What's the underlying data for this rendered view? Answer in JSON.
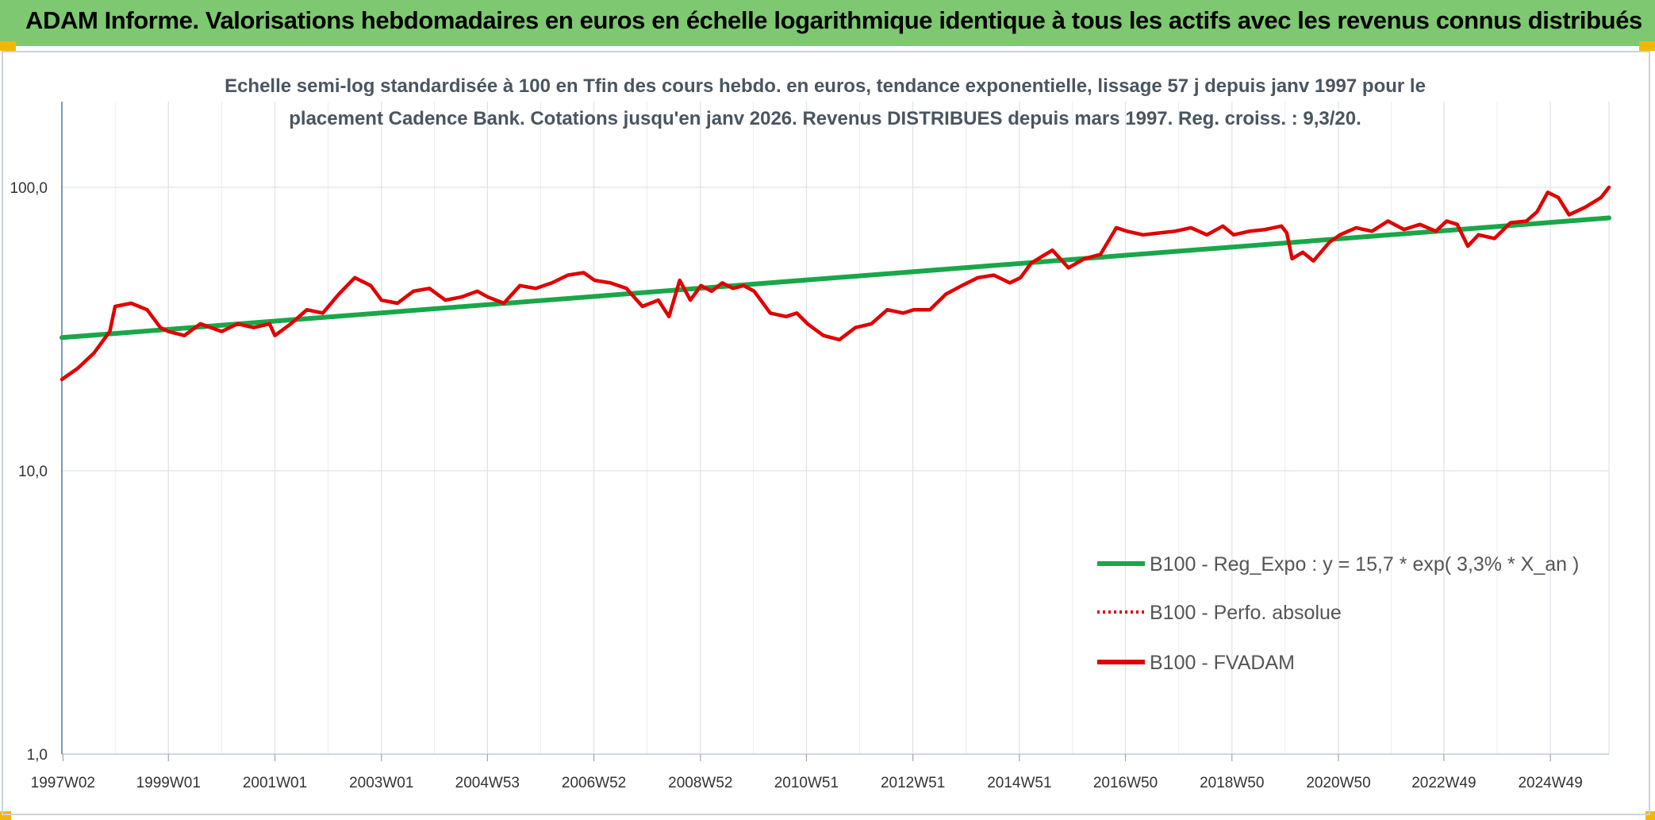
{
  "header": {
    "title": "ADAM Informe. Valorisations hebdomadaires en euros en échelle logarithmique identique à tous les actifs avec les revenus connus distribués"
  },
  "chart_data": {
    "type": "line",
    "title_line1": "Echelle semi-log standardisée à 100 en Tfin des cours hebdo. en euros, tendance exponentielle, lissage 57 j depuis janv 1997 pour le",
    "title_line2": "placement Cadence Bank. Cotations jusqu'en janv 2026. Revenus DISTRIBUES depuis mars 1997. Reg. croiss. : 9,3/20.",
    "y_scale": "log",
    "ylim": [
      1,
      200
    ],
    "y_ticks": [
      {
        "value": 1,
        "label": "1,0"
      },
      {
        "value": 10,
        "label": "10,0"
      },
      {
        "value": 100,
        "label": "100,0"
      }
    ],
    "x_range": [
      1997.0,
      2026.05
    ],
    "x_ticks": [
      {
        "value": 1997.02,
        "label": "1997W02"
      },
      {
        "value": 1999.0,
        "label": "1999W01"
      },
      {
        "value": 2001.0,
        "label": "2001W01"
      },
      {
        "value": 2003.0,
        "label": "2003W01"
      },
      {
        "value": 2004.99,
        "label": "2004W53"
      },
      {
        "value": 2006.99,
        "label": "2006W52"
      },
      {
        "value": 2008.99,
        "label": "2008W52"
      },
      {
        "value": 2010.98,
        "label": "2010W51"
      },
      {
        "value": 2012.98,
        "label": "2012W51"
      },
      {
        "value": 2014.98,
        "label": "2014W51"
      },
      {
        "value": 2016.97,
        "label": "2016W50"
      },
      {
        "value": 2018.97,
        "label": "2018W50"
      },
      {
        "value": 2020.97,
        "label": "2020W50"
      },
      {
        "value": 2022.95,
        "label": "2022W49"
      },
      {
        "value": 2024.95,
        "label": "2024W49"
      }
    ],
    "grid": true,
    "legend_position": "bottom-right",
    "series": [
      {
        "name": "B100 - Reg_Expo : y = 15,7 * exp( 3,3% *  X_an )",
        "color": "#1aa64a",
        "style": "solid",
        "x": [
          1997.0,
          2026.05
        ],
        "y": [
          29.5,
          78.0
        ]
      },
      {
        "name": "B100 - Perfo. absolue",
        "color": "#e00000",
        "style": "dotted",
        "x": [],
        "y": []
      },
      {
        "name": "B100 - FVADAM",
        "color": "#e00000",
        "style": "solid",
        "x": [
          1997.0,
          1997.3,
          1997.6,
          1997.9,
          1998.0,
          1998.3,
          1998.6,
          1998.85,
          1999.0,
          1999.3,
          1999.6,
          1999.8,
          2000.0,
          2000.3,
          2000.6,
          2000.9,
          2001.0,
          2001.3,
          2001.6,
          2001.9,
          2002.2,
          2002.5,
          2002.8,
          2003.0,
          2003.3,
          2003.6,
          2003.9,
          2004.2,
          2004.5,
          2004.8,
          2005.0,
          2005.3,
          2005.6,
          2005.9,
          2006.2,
          2006.5,
          2006.8,
          2007.0,
          2007.3,
          2007.6,
          2007.9,
          2008.2,
          2008.4,
          2008.6,
          2008.8,
          2009.0,
          2009.2,
          2009.4,
          2009.6,
          2009.8,
          2010.0,
          2010.3,
          2010.6,
          2010.8,
          2011.0,
          2011.3,
          2011.6,
          2011.9,
          2012.2,
          2012.5,
          2012.8,
          2013.0,
          2013.3,
          2013.6,
          2013.9,
          2014.2,
          2014.5,
          2014.8,
          2015.0,
          2015.2,
          2015.4,
          2015.6,
          2015.9,
          2016.2,
          2016.5,
          2016.8,
          2017.0,
          2017.3,
          2017.6,
          2017.9,
          2018.2,
          2018.5,
          2018.8,
          2019.0,
          2019.3,
          2019.6,
          2019.9,
          2020.0,
          2020.1,
          2020.3,
          2020.5,
          2020.8,
          2021.0,
          2021.3,
          2021.6,
          2021.9,
          2022.2,
          2022.5,
          2022.8,
          2023.0,
          2023.2,
          2023.4,
          2023.6,
          2023.9,
          2024.2,
          2024.5,
          2024.7,
          2024.9,
          2025.1,
          2025.3,
          2025.6,
          2025.9,
          2026.05
        ],
        "y": [
          21,
          23,
          26,
          31,
          38,
          39,
          37,
          32,
          31,
          30,
          33,
          32,
          31,
          33,
          32,
          33,
          30,
          33,
          37,
          36,
          42,
          48,
          45,
          40,
          39,
          43,
          44,
          40,
          41,
          43,
          41,
          39,
          45,
          44,
          46,
          49,
          50,
          47,
          46,
          44,
          38,
          40,
          35,
          47,
          40,
          45,
          43,
          46,
          44,
          45,
          43,
          36,
          35,
          36,
          33,
          30,
          29,
          32,
          33,
          37,
          36,
          37,
          37,
          42,
          45,
          48,
          49,
          46,
          48,
          54,
          57,
          60,
          52,
          56,
          58,
          72,
          70,
          68,
          69,
          70,
          72,
          68,
          73,
          68,
          70,
          71,
          73,
          69,
          56,
          59,
          55,
          64,
          68,
          72,
          70,
          76,
          71,
          74,
          70,
          76,
          74,
          62,
          68,
          66,
          75,
          76,
          82,
          96,
          92,
          80,
          85,
          92,
          100
        ]
      }
    ]
  }
}
